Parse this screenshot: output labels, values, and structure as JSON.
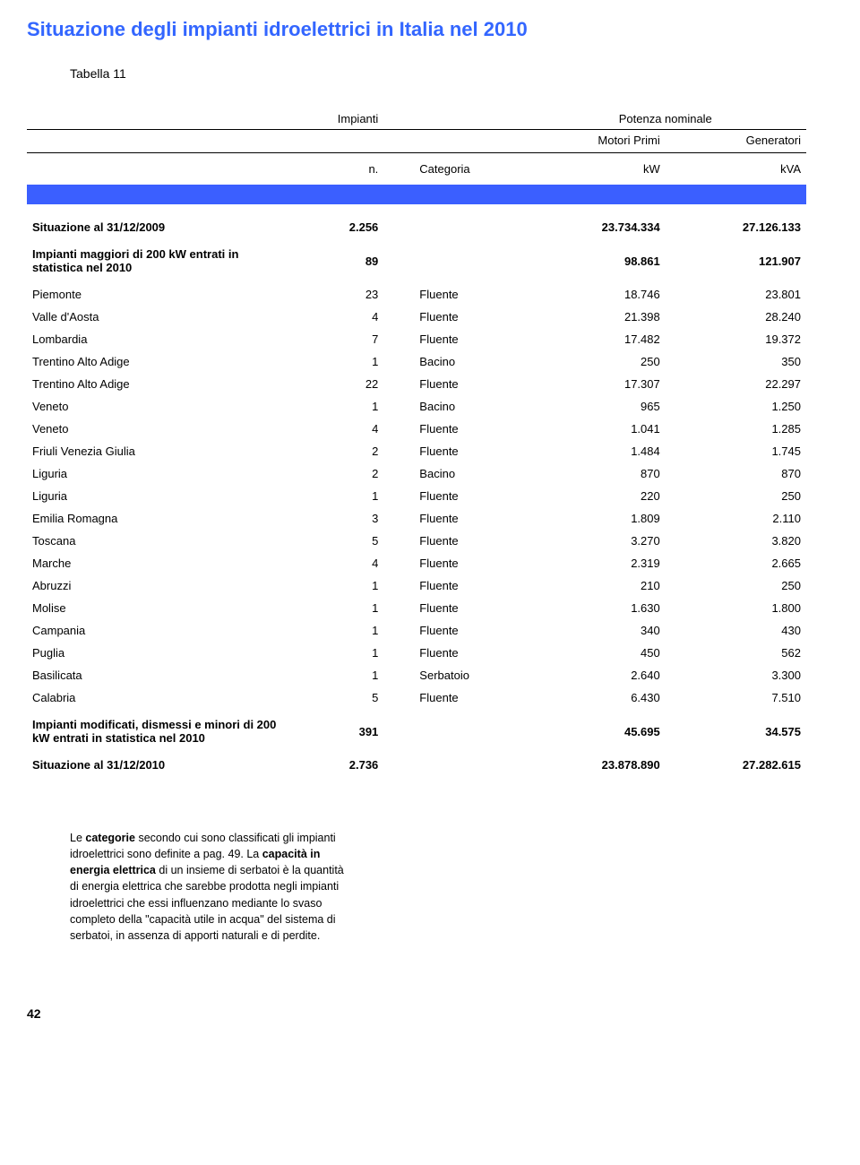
{
  "title": "Situazione degli impianti idroelettrici in Italia nel 2010",
  "subtitle": "Tabella 11",
  "headers": {
    "impianti": "Impianti",
    "potenza": "Potenza nominale",
    "motori": "Motori Primi",
    "generatori": "Generatori",
    "n": "n.",
    "categoria": "Categoria",
    "kw": "kW",
    "kva": "kVA"
  },
  "row_situazione_2009": {
    "label": "Situazione al 31/12/2009",
    "n": "2.256",
    "cat": "",
    "kw": "23.734.334",
    "kva": "27.126.133"
  },
  "row_maggiori": {
    "label": "Impianti maggiori di 200 kW entrati in statistica nel 2010",
    "n": "89",
    "cat": "",
    "kw": "98.861",
    "kva": "121.907"
  },
  "rows": [
    {
      "label": "Piemonte",
      "n": "23",
      "cat": "Fluente",
      "kw": "18.746",
      "kva": "23.801"
    },
    {
      "label": "Valle d'Aosta",
      "n": "4",
      "cat": "Fluente",
      "kw": "21.398",
      "kva": "28.240"
    },
    {
      "label": "Lombardia",
      "n": "7",
      "cat": "Fluente",
      "kw": "17.482",
      "kva": "19.372"
    },
    {
      "label": "Trentino Alto Adige",
      "n": "1",
      "cat": "Bacino",
      "kw": "250",
      "kva": "350"
    },
    {
      "label": "Trentino Alto Adige",
      "n": "22",
      "cat": "Fluente",
      "kw": "17.307",
      "kva": "22.297"
    },
    {
      "label": "Veneto",
      "n": "1",
      "cat": "Bacino",
      "kw": "965",
      "kva": "1.250"
    },
    {
      "label": "Veneto",
      "n": "4",
      "cat": "Fluente",
      "kw": "1.041",
      "kva": "1.285"
    },
    {
      "label": "Friuli Venezia Giulia",
      "n": "2",
      "cat": "Fluente",
      "kw": "1.484",
      "kva": "1.745"
    },
    {
      "label": "Liguria",
      "n": "2",
      "cat": "Bacino",
      "kw": "870",
      "kva": "870"
    },
    {
      "label": "Liguria",
      "n": "1",
      "cat": "Fluente",
      "kw": "220",
      "kva": "250"
    },
    {
      "label": "Emilia Romagna",
      "n": "3",
      "cat": "Fluente",
      "kw": "1.809",
      "kva": "2.110"
    },
    {
      "label": "Toscana",
      "n": "5",
      "cat": "Fluente",
      "kw": "3.270",
      "kva": "3.820"
    },
    {
      "label": "Marche",
      "n": "4",
      "cat": "Fluente",
      "kw": "2.319",
      "kva": "2.665"
    },
    {
      "label": "Abruzzi",
      "n": "1",
      "cat": "Fluente",
      "kw": "210",
      "kva": "250"
    },
    {
      "label": "Molise",
      "n": "1",
      "cat": "Fluente",
      "kw": "1.630",
      "kva": "1.800"
    },
    {
      "label": "Campania",
      "n": "1",
      "cat": "Fluente",
      "kw": "340",
      "kva": "430"
    },
    {
      "label": "Puglia",
      "n": "1",
      "cat": "Fluente",
      "kw": "450",
      "kva": "562"
    },
    {
      "label": "Basilicata",
      "n": "1",
      "cat": "Serbatoio",
      "kw": "2.640",
      "kva": "3.300"
    },
    {
      "label": "Calabria",
      "n": "5",
      "cat": "Fluente",
      "kw": "6.430",
      "kva": "7.510"
    }
  ],
  "row_modificati": {
    "label": "Impianti modificati, dismessi e minori di 200 kW entrati in statistica nel 2010",
    "n": "391",
    "cat": "",
    "kw": "45.695",
    "kva": "34.575"
  },
  "row_situazione_2010": {
    "label": "Situazione al 31/12/2010",
    "n": "2.736",
    "cat": "",
    "kw": "23.878.890",
    "kva": "27.282.615"
  },
  "footnote": "Le categorie secondo cui sono classificati gli impianti idroelettrici sono definite a pag. 49. La capacità in energia elettrica di un insieme di serbatoi è la quantità di energia elettrica che sarebbe prodotta negli impianti idroelettrici che essi influenzano mediante lo svaso completo della \"capacità utile in acqua\" del sistema di serbatoi, in assenza di apporti naturali e di perdite.",
  "footnote_bold1": "categorie",
  "footnote_bold2": "capacità in energia elettrica",
  "pagenum": "42",
  "colors": {
    "title": "#3366ff",
    "bar": "#3b5fff",
    "text": "#000000",
    "bg": "#ffffff"
  }
}
